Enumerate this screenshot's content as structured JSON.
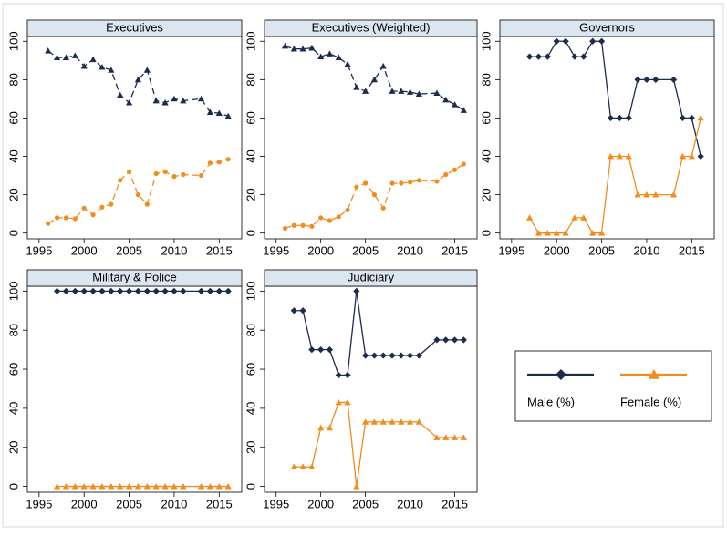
{
  "chart_data": [
    {
      "type": "line",
      "title": "Executives",
      "x": [
        1996,
        1997,
        1998,
        1999,
        2000,
        2001,
        2002,
        2003,
        2004,
        2005,
        2006,
        2007,
        2008,
        2009,
        2010,
        2011,
        2013,
        2014,
        2015,
        2016
      ],
      "series": [
        {
          "name": "Male (%)",
          "color": "#1c2b4e",
          "marker": "triangle",
          "dash": true,
          "values": [
            95,
            91.5,
            91.5,
            92.5,
            87,
            90.5,
            86.5,
            85,
            72,
            68,
            80,
            85,
            69,
            68,
            70,
            69,
            70,
            63,
            62.5,
            61
          ]
        },
        {
          "name": "Female (%)",
          "color": "#f28c1c",
          "marker": "circle",
          "dash": true,
          "values": [
            5,
            8,
            8,
            7.5,
            13,
            9.5,
            13.5,
            15,
            27.5,
            32,
            20,
            15,
            31,
            32,
            29.5,
            30.5,
            30,
            36.5,
            37,
            38.5
          ]
        }
      ],
      "xlim": [
        1993.7,
        2017.5
      ],
      "ylim": [
        -3,
        102.5
      ],
      "xticks": [
        1995,
        2000,
        2005,
        2010,
        2015
      ],
      "yticks": [
        0,
        20,
        40,
        60,
        80,
        100
      ]
    },
    {
      "type": "line",
      "title": "Executives (Weighted)",
      "x": [
        1996,
        1997,
        1998,
        1999,
        2000,
        2001,
        2002,
        2003,
        2004,
        2005,
        2006,
        2007,
        2008,
        2009,
        2010,
        2011,
        2013,
        2014,
        2015,
        2016
      ],
      "series": [
        {
          "name": "Male (%)",
          "color": "#1c2b4e",
          "marker": "triangle",
          "dash": true,
          "values": [
            97.5,
            96,
            96,
            96.5,
            92,
            93.5,
            91.5,
            88,
            76,
            74,
            80,
            87,
            74,
            74,
            73.5,
            72.5,
            73,
            69.5,
            67,
            64
          ]
        },
        {
          "name": "Female (%)",
          "color": "#f28c1c",
          "marker": "circle",
          "dash": true,
          "values": [
            2.5,
            4,
            4,
            3.5,
            8,
            6.5,
            8.5,
            12,
            24,
            26,
            20,
            13,
            26,
            26,
            26.5,
            27.5,
            27,
            30.5,
            33,
            36
          ]
        }
      ],
      "xlim": [
        1993.7,
        2017.5
      ],
      "ylim": [
        -3,
        102.5
      ],
      "xticks": [
        1995,
        2000,
        2005,
        2010,
        2015
      ],
      "yticks": [
        0,
        20,
        40,
        60,
        80,
        100
      ]
    },
    {
      "type": "line",
      "title": "Governors",
      "x": [
        1997,
        1998,
        1999,
        2000,
        2001,
        2002,
        2003,
        2004,
        2005,
        2006,
        2007,
        2008,
        2009,
        2010,
        2011,
        2013,
        2014,
        2015,
        2016
      ],
      "series": [
        {
          "name": "Male (%)",
          "color": "#1c2b4e",
          "marker": "diamond",
          "dash": false,
          "values": [
            92,
            92,
            92,
            100,
            100,
            92,
            92,
            100,
            100,
            60,
            60,
            60,
            80,
            80,
            80,
            80,
            60,
            60,
            40
          ]
        },
        {
          "name": "Female (%)",
          "color": "#f28c1c",
          "marker": "triangle",
          "dash": false,
          "values": [
            8,
            0,
            0,
            0,
            0,
            8,
            8,
            0,
            0,
            40,
            40,
            40,
            20,
            20,
            20,
            20,
            40,
            40,
            60
          ]
        }
      ],
      "xlim": [
        1993.7,
        2017.5
      ],
      "ylim": [
        -3,
        102.5
      ],
      "xticks": [
        1995,
        2000,
        2005,
        2010,
        2015
      ],
      "yticks": [
        0,
        20,
        40,
        60,
        80,
        100
      ]
    },
    {
      "type": "line",
      "title": "Military & Police",
      "x": [
        1997,
        1998,
        1999,
        2000,
        2001,
        2002,
        2003,
        2004,
        2005,
        2006,
        2007,
        2008,
        2009,
        2010,
        2011,
        2013,
        2014,
        2015,
        2016
      ],
      "series": [
        {
          "name": "Male (%)",
          "color": "#1c2b4e",
          "marker": "diamond",
          "dash": false,
          "values": [
            100,
            100,
            100,
            100,
            100,
            100,
            100,
            100,
            100,
            100,
            100,
            100,
            100,
            100,
            100,
            100,
            100,
            100,
            100
          ]
        },
        {
          "name": "Female (%)",
          "color": "#f28c1c",
          "marker": "triangle",
          "dash": false,
          "values": [
            0,
            0,
            0,
            0,
            0,
            0,
            0,
            0,
            0,
            0,
            0,
            0,
            0,
            0,
            0,
            0,
            0,
            0,
            0
          ]
        }
      ],
      "xlim": [
        1993.7,
        2017.5
      ],
      "ylim": [
        -3,
        102.5
      ],
      "xticks": [
        1995,
        2000,
        2005,
        2010,
        2015
      ],
      "yticks": [
        0,
        20,
        40,
        60,
        80,
        100
      ]
    },
    {
      "type": "line",
      "title": "Judiciary",
      "x": [
        1997,
        1998,
        1999,
        2000,
        2001,
        2002,
        2003,
        2004,
        2005,
        2006,
        2007,
        2008,
        2009,
        2010,
        2011,
        2013,
        2014,
        2015,
        2016
      ],
      "series": [
        {
          "name": "Male (%)",
          "color": "#1c2b4e",
          "marker": "diamond",
          "dash": false,
          "values": [
            90,
            90,
            70,
            70,
            70,
            57,
            57,
            100,
            67,
            67,
            67,
            67,
            67,
            67,
            67,
            75,
            75,
            75,
            75
          ]
        },
        {
          "name": "Female (%)",
          "color": "#f28c1c",
          "marker": "triangle",
          "dash": false,
          "values": [
            10,
            10,
            10,
            30,
            30,
            43,
            43,
            0,
            33,
            33,
            33,
            33,
            33,
            33,
            33,
            25,
            25,
            25,
            25
          ]
        }
      ],
      "xlim": [
        1993.7,
        2017.5
      ],
      "ylim": [
        -3,
        102.5
      ],
      "xticks": [
        1995,
        2000,
        2005,
        2010,
        2015
      ],
      "yticks": [
        0,
        20,
        40,
        60,
        80,
        100
      ]
    }
  ]
}
